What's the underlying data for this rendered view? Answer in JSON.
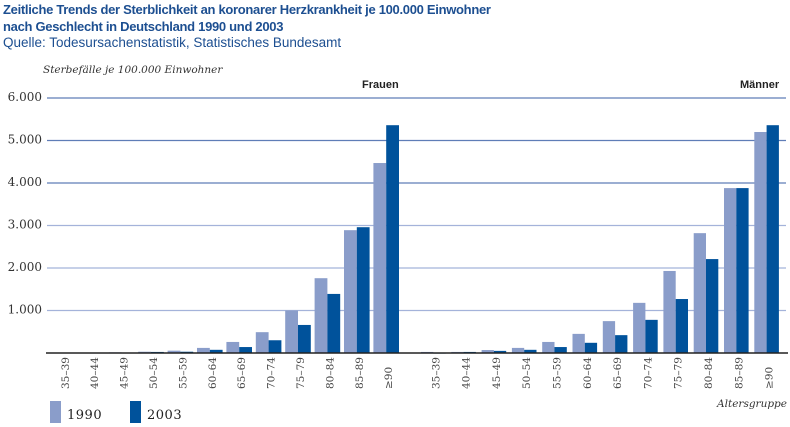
{
  "header": {
    "title_line1": "Zeitliche Trends der Sterblichkeit an koronarer Herzkrankheit je 100.000 Einwohner",
    "title_line2": "nach Geschlecht in Deutschland 1990 und 2003",
    "source": "Quelle: Todesursachenstatistik, Statistisches Bundesamt"
  },
  "colors": {
    "series_1990": "#8a9dca",
    "series_2003": "#00529b",
    "grid": "#9aabd3",
    "title": "#1d4f91"
  },
  "chart_data": {
    "type": "bar",
    "title": "Zeitliche Trends der Sterblichkeit an koronarer Herzkrankheit je 100.000 Einwohner nach Geschlecht in Deutschland 1990 und 2003",
    "ylabel": "Sterbefälle je 100.000 Einwohner",
    "xlabel": "Altersgruppe",
    "ylim": [
      0,
      6000
    ],
    "yticks": [
      {
        "value": 1000,
        "label": "1.000"
      },
      {
        "value": 2000,
        "label": "2.000"
      },
      {
        "value": 3000,
        "label": "3.000"
      },
      {
        "value": 4000,
        "label": "4.000"
      },
      {
        "value": 5000,
        "label": "5.000"
      },
      {
        "value": 6000,
        "label": "6.000"
      }
    ],
    "grid": true,
    "legend": [
      {
        "name": "1990",
        "position": "bottom-left"
      },
      {
        "name": "2003",
        "position": "bottom-left"
      }
    ],
    "categories": [
      "35–39",
      "40–44",
      "45–49",
      "50–54",
      "55–59",
      "60–64",
      "65–69",
      "70–74",
      "75–79",
      "80–84",
      "85–89",
      "≥90"
    ],
    "panels": [
      {
        "label": "Frauen",
        "series": [
          {
            "name": "1990",
            "values": [
              10,
              10,
              15,
              30,
              55,
              120,
              260,
              490,
              1000,
              1760,
              2890,
              4470
            ]
          },
          {
            "name": "2003",
            "values": [
              10,
              10,
              10,
              25,
              30,
              75,
              140,
              300,
              660,
              1390,
              2960,
              5360
            ]
          }
        ]
      },
      {
        "label": "Männer",
        "series": [
          {
            "name": "1990",
            "values": [
              25,
              25,
              70,
              120,
              260,
              450,
              750,
              1180,
              1930,
              2820,
              3880,
              5200
            ]
          },
          {
            "name": "2003",
            "values": [
              5,
              25,
              50,
              75,
              140,
              240,
              420,
              780,
              1270,
              2210,
              3880,
              5360
            ]
          }
        ]
      }
    ]
  }
}
